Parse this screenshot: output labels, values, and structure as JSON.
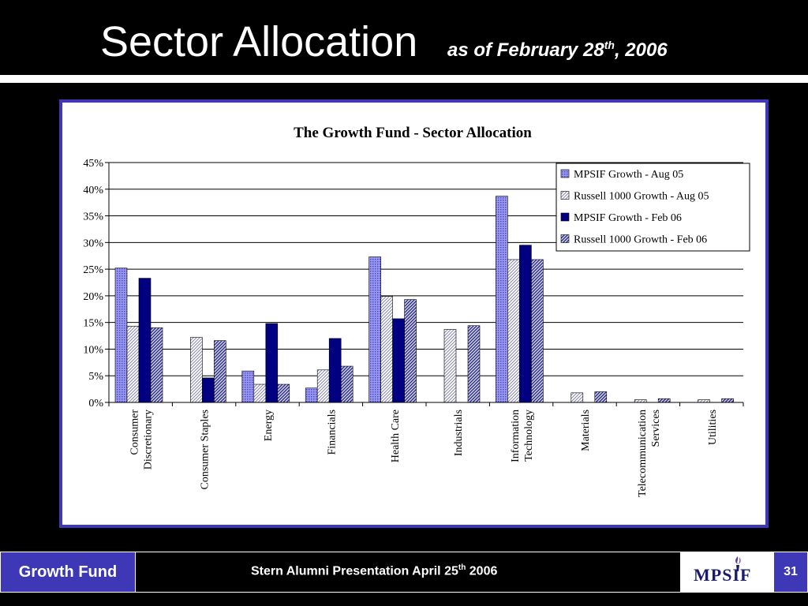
{
  "slide": {
    "title": "Sector Allocation",
    "subtitle_main": "as of February 28",
    "subtitle_sup": "th",
    "subtitle_end": ", 2006"
  },
  "footer": {
    "left_label": "Growth Fund",
    "center_main": "Stern Alumni Presentation April 25",
    "center_sup": "th",
    "center_end": " 2006",
    "logo_text": "MPSIF",
    "page_number": "31"
  },
  "colors": {
    "accent": "#3F38B6",
    "navy": "#000080",
    "series_fill_1": "#8888EE"
  },
  "chart_data": {
    "type": "bar",
    "title": "The Growth Fund - Sector Allocation",
    "xlabel": "",
    "ylabel": "",
    "ylim": [
      0,
      45
    ],
    "y_ticks": [
      "0%",
      "5%",
      "10%",
      "15%",
      "20%",
      "25%",
      "30%",
      "35%",
      "40%",
      "45%"
    ],
    "y_tick_values": [
      0,
      5,
      10,
      15,
      20,
      25,
      30,
      35,
      40,
      45
    ],
    "grid": true,
    "legend_position": "top-right",
    "categories": [
      "Consumer Discretionary",
      "Consumer Staples",
      "Energy",
      "Financials",
      "Health Care",
      "Industrials",
      "Information Technology",
      "Materials",
      "Telecommunication Services",
      "Utilities"
    ],
    "category_lines": [
      [
        "Consumer",
        "Discretionary"
      ],
      [
        "Consumer Staples"
      ],
      [
        "Energy"
      ],
      [
        "Financials"
      ],
      [
        "Health Care"
      ],
      [
        "Industrials"
      ],
      [
        "Information",
        "Technology"
      ],
      [
        "Materials"
      ],
      [
        "Telecommunication",
        "Services"
      ],
      [
        "Utilities"
      ]
    ],
    "series": [
      {
        "name": "MPSIF Growth - Aug 05",
        "style": "dotted-blue",
        "values": [
          25.2,
          0,
          5.9,
          2.7,
          27.3,
          0,
          38.7,
          0,
          0,
          0
        ]
      },
      {
        "name": "Russell 1000 Growth - Aug 05",
        "style": "hatch-light",
        "values": [
          14.3,
          12.2,
          3.4,
          6.1,
          19.9,
          13.7,
          26.8,
          1.8,
          0.5,
          0.5
        ]
      },
      {
        "name": "MPSIF Growth - Feb 06",
        "style": "solid-navy",
        "values": [
          23.3,
          4.6,
          14.8,
          12.0,
          15.7,
          0,
          29.5,
          0,
          0,
          0
        ]
      },
      {
        "name": "Russell 1000 Growth - Feb 06",
        "style": "hatch-dark",
        "values": [
          14.0,
          11.6,
          3.4,
          6.8,
          19.3,
          14.4,
          26.8,
          2.0,
          0.7,
          0.7
        ]
      }
    ]
  }
}
